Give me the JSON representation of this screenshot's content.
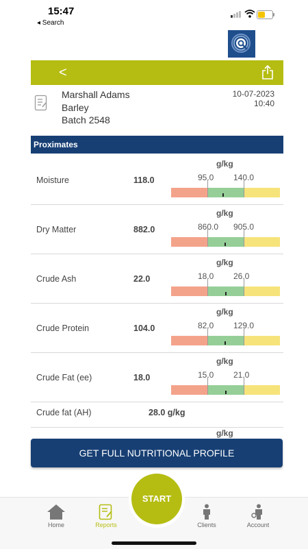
{
  "status_bar": {
    "time": "15:47",
    "back_label": "◂ Search"
  },
  "header": {
    "back_glyph": "<"
  },
  "client": {
    "name": "Marshall Adams",
    "product": "Barley",
    "batch": "Batch 2548",
    "date": "10-07-2023",
    "time": "10:40"
  },
  "section": {
    "title": "Proximates"
  },
  "rows": [
    {
      "unit": "g/kg",
      "label": "Moisture",
      "value": "118.0",
      "low": "95.0",
      "high": "140.0"
    },
    {
      "unit": "g/kg",
      "label": "Dry Matter",
      "value": "882.0",
      "low": "860.0",
      "high": "905.0"
    },
    {
      "unit": "g/kg",
      "label": "Crude Ash",
      "value": "22.0",
      "low": "18.0",
      "high": "26.0"
    },
    {
      "unit": "g/kg",
      "label": "Crude Protein",
      "value": "104.0",
      "low": "82.0",
      "high": "129.0"
    },
    {
      "unit": "g/kg",
      "label": "Crude Fat (ee)",
      "value": "18.0",
      "low": "15.0",
      "high": "21.0"
    }
  ],
  "crude_fat_ah": {
    "label": "Crude fat (AH)",
    "value": "28.0 g/kg"
  },
  "next_unit": "g/kg",
  "profile_button": "GET FULL NUTRITIONAL PROFILE",
  "nav": {
    "home": "Home",
    "reports": "Reports",
    "start": "START",
    "clients": "Clients",
    "account": "Account"
  },
  "colors": {
    "accent": "#b5bd12",
    "navy": "#173f74",
    "low": "#f4a38b",
    "ok": "#95cf97",
    "high": "#f6e37a"
  }
}
